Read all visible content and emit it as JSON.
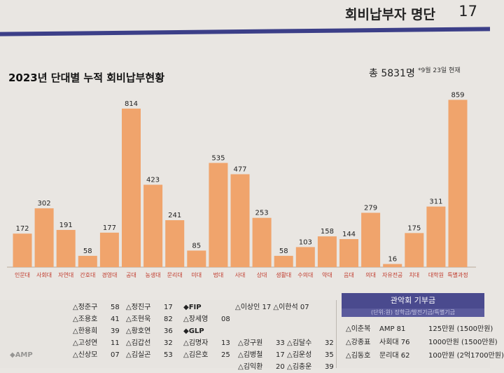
{
  "header": {
    "title": "회비납부자 명단",
    "page": "17"
  },
  "chart_data": {
    "type": "bar",
    "title": "2023년 단대별 누적 회비납부현황",
    "total": "총 5831명",
    "date_note": "*9월 23일 현재",
    "categories": [
      "인문대",
      "사회대",
      "자연대",
      "간호대",
      "경영대",
      "공대",
      "농생대",
      "문리대",
      "미대",
      "법대",
      "사대",
      "상대",
      "생활대",
      "수의대",
      "약대",
      "음대",
      "의대",
      "자유전공",
      "치대",
      "대학원",
      "특별과정"
    ],
    "values": [
      172,
      302,
      191,
      58,
      177,
      814,
      423,
      241,
      85,
      535,
      477,
      253,
      58,
      103,
      158,
      144,
      279,
      16,
      175,
      311,
      859
    ],
    "ylim": [
      0,
      900
    ],
    "bar_color": "#f0a46c",
    "label_color": "#c0392b"
  },
  "lists": {
    "col2": [
      {
        "name": "△정준구",
        "n": "58"
      },
      {
        "name": "△조용호",
        "n": "41"
      },
      {
        "name": "△한용희",
        "n": "39"
      },
      {
        "name": "△고성연",
        "n": "11"
      },
      {
        "name": "△신상모",
        "n": "07"
      }
    ],
    "col3": [
      {
        "name": "△정진구",
        "n": "17"
      },
      {
        "name": "△조현욱",
        "n": "82"
      },
      {
        "name": "△황호연",
        "n": "36"
      },
      {
        "name": "△김갑선",
        "n": "32"
      },
      {
        "name": "△김실곤",
        "n": "53"
      }
    ],
    "fip_label": "◆FIP",
    "fip": [
      {
        "name": "△이상인",
        "n": "17"
      },
      {
        "name": "△장세영",
        "n": "08"
      }
    ],
    "fip2": [
      {
        "name": "△이한석",
        "n": "07"
      }
    ],
    "glp_label": "◆GLP",
    "glp_a": [
      {
        "name": "△김명자",
        "n": "13"
      },
      {
        "name": "△김은호",
        "n": "25"
      }
    ],
    "glp_b": [
      {
        "name": "△강구원",
        "n": "33"
      },
      {
        "name": "△김병철",
        "n": "17"
      },
      {
        "name": "△김익환",
        "n": "20"
      }
    ],
    "glp_c": [
      {
        "name": "△김달수",
        "n": "32"
      },
      {
        "name": "△김운성",
        "n": "35"
      },
      {
        "name": "△김충운",
        "n": "39"
      }
    ],
    "amp_label": "◆AMP"
  },
  "donation": {
    "title": "관악회 기부금",
    "subtitle": "(단위:원) 장학금/발전기금/특별기금",
    "rows": [
      {
        "name": "△이춘복",
        "dept": "AMP 81",
        "amount": "125만원 (1500만원)"
      },
      {
        "name": "△강종표",
        "dept": "사회대 76",
        "amount": "1000만원 (1500만원)"
      },
      {
        "name": "△김동호",
        "dept": "문리대 62",
        "amount": "100만원 (2억1700만원)"
      }
    ]
  }
}
